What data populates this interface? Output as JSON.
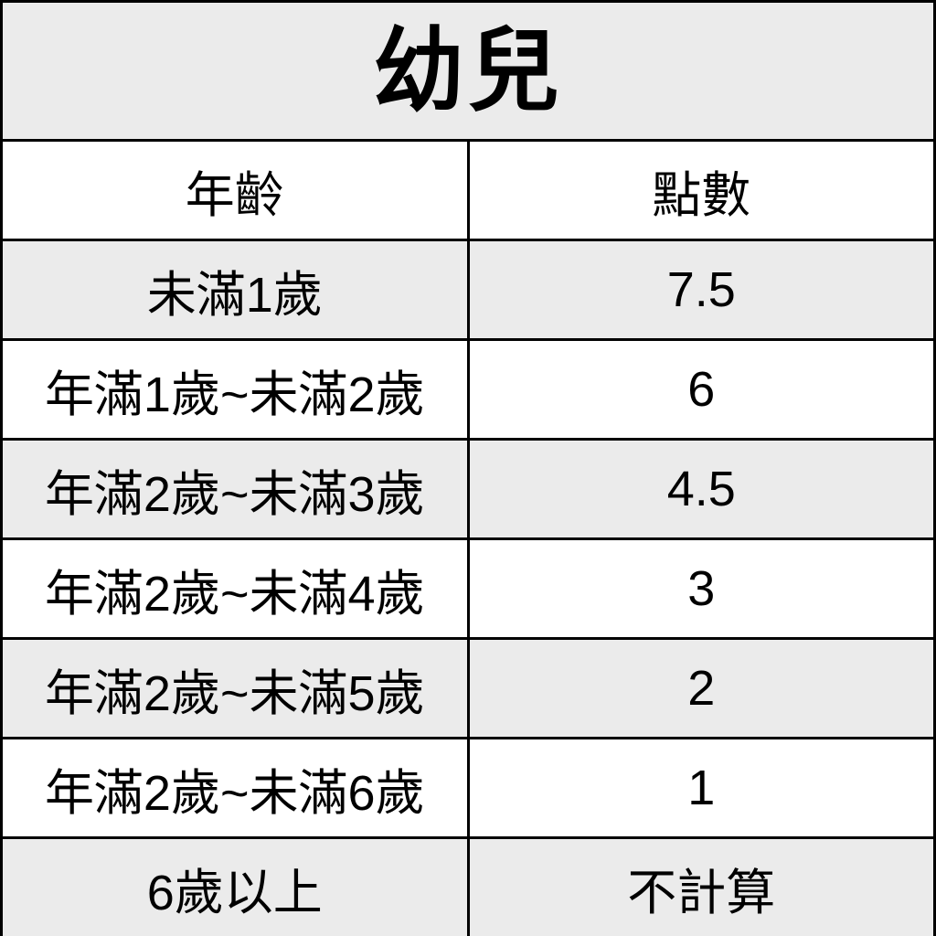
{
  "page": {
    "title": "幼兒"
  },
  "colors": {
    "row_shade": "#ebebeb",
    "row_plain": "#ffffff",
    "border": "#000000",
    "text": "#000000"
  },
  "chart_data": {
    "type": "table",
    "title": "幼兒",
    "columns": [
      "年齡",
      "點數"
    ],
    "rows": [
      [
        "未滿1歲",
        "7.5"
      ],
      [
        "年滿1歲~未滿2歲",
        "6"
      ],
      [
        "年滿2歲~未滿3歲",
        "4.5"
      ],
      [
        "年滿2歲~未滿4歲",
        "3"
      ],
      [
        "年滿2歲~未滿5歲",
        "2"
      ],
      [
        "年滿2歲~未滿6歲",
        "1"
      ],
      [
        "6歲以上",
        "不計算"
      ]
    ],
    "layout": {
      "title_band_shaded": true,
      "header_band_shaded": false,
      "body_rows_alternate": "shaded-first",
      "column_split": "50/50",
      "grid": true
    }
  }
}
